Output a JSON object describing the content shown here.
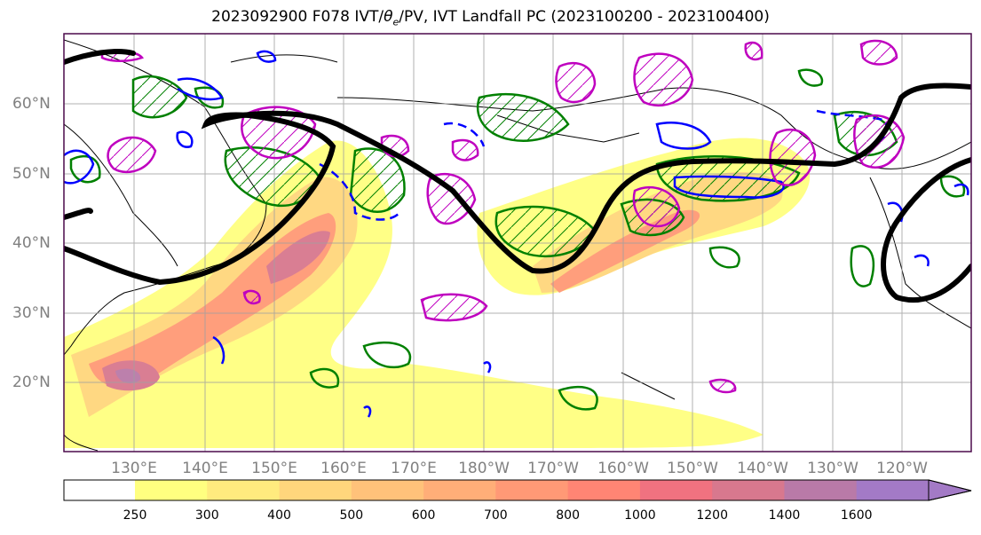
{
  "title_prefix": "2023092900 F078 IVT/",
  "title_theta": "θ",
  "title_theta_sub": "e",
  "title_suffix": "/PV, IVT Landfall PC (2023100200 - 2023100400)",
  "map": {
    "lat_labels": [
      "60°N",
      "50°N",
      "40°N",
      "30°N",
      "20°N"
    ],
    "lon_labels": [
      "130°E",
      "140°E",
      "150°E",
      "160°E",
      "170°E",
      "180°W",
      "170°W",
      "160°W",
      "150°W",
      "140°W",
      "130°W",
      "120°W"
    ],
    "colors": {
      "land_outline": "#000000",
      "jet_contour": "#000000",
      "pv_green": "#008000",
      "theta_blue": "#0000ff",
      "ivt_magenta": "#bf00bf",
      "grid": "#a0a0a0",
      "frame": "#4b0a4b"
    }
  },
  "colorbar": {
    "ticks": [
      "250",
      "300",
      "400",
      "500",
      "600",
      "700",
      "800",
      "1000",
      "1200",
      "1400",
      "1600"
    ],
    "colors": [
      "#ffff80",
      "#ffeb7e",
      "#ffd67c",
      "#ffc27a",
      "#ffae78",
      "#ff9976",
      "#ff8574",
      "#f07280",
      "#d8788e",
      "#b97aa8",
      "#a37ac6"
    ],
    "extend": "max"
  }
}
